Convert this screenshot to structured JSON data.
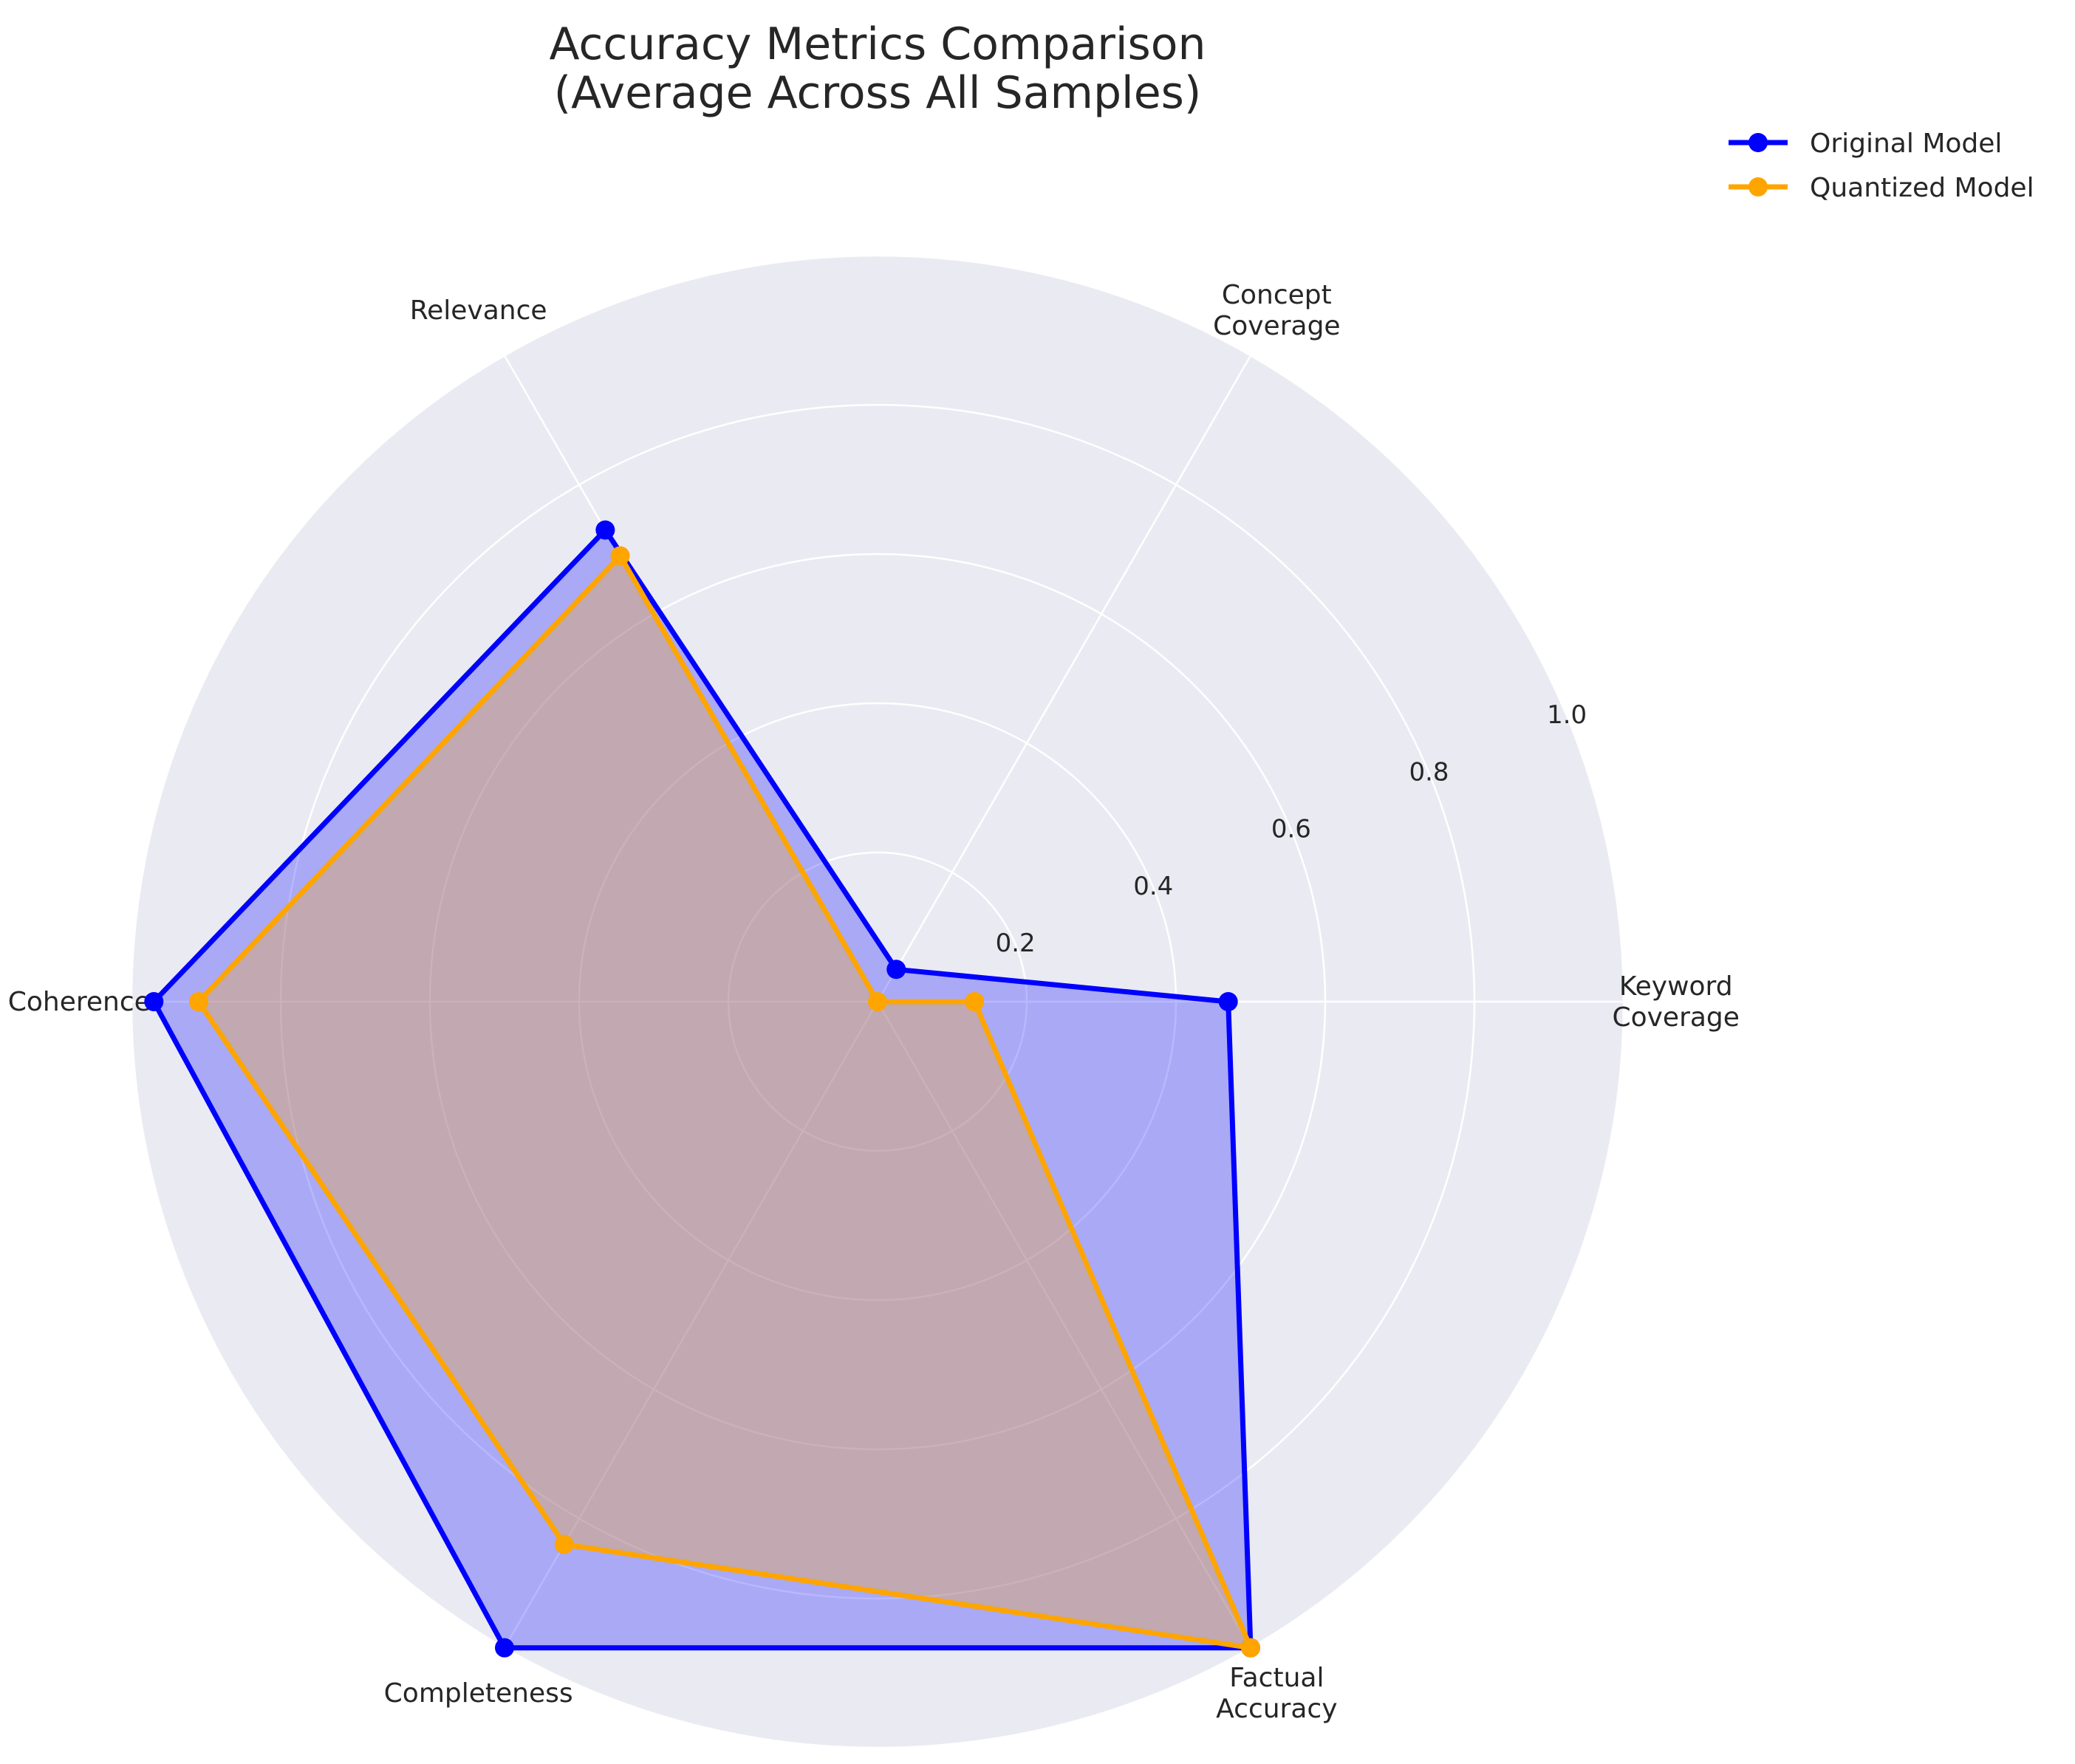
{
  "chart_data": {
    "type": "radar",
    "title_lines": [
      "Accuracy Metrics Comparison",
      "(Average Across All Samples)"
    ],
    "categories": [
      [
        "Keyword",
        "Coverage"
      ],
      [
        "Concept",
        "Coverage"
      ],
      [
        "Relevance"
      ],
      [
        "Coherence"
      ],
      [
        "Completeness"
      ],
      [
        "Factual",
        "Accuracy"
      ]
    ],
    "series": [
      {
        "name": "Original Model",
        "color": "#0000ff",
        "fill_color": "#0000ff",
        "fill_opacity": 0.28,
        "values": [
          0.47,
          0.05,
          0.73,
          0.97,
          1.0,
          1.0
        ]
      },
      {
        "name": "Quantized Model",
        "color": "#ffa500",
        "fill_color": "#ffa500",
        "fill_opacity": 0.28,
        "values": [
          0.13,
          0.0,
          0.69,
          0.91,
          0.84,
          1.0
        ]
      }
    ],
    "rlim": [
      0,
      1.0
    ],
    "rticks": [
      0.2,
      0.4,
      0.6,
      0.8,
      1.0
    ],
    "rtick_labels": [
      "0.2",
      "0.4",
      "0.6",
      "0.8",
      "1.0"
    ],
    "grid": true,
    "background": "#eaeaf2",
    "legend_position": "top-right"
  }
}
